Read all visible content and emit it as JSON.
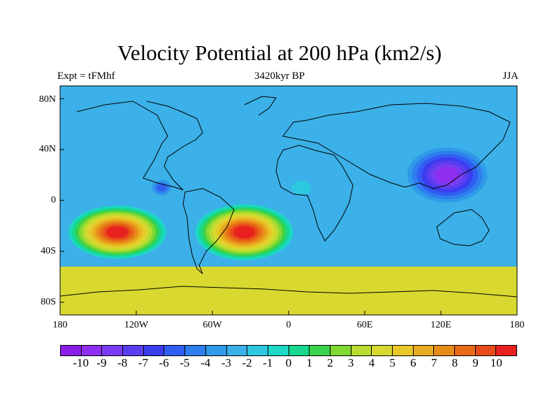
{
  "title": "Velocity Potential at 200 hPa (km2/s)",
  "left_subtitle": "Expt = tFMhf",
  "center_subtitle": "3420kyr BP",
  "right_subtitle": "JJA",
  "y_ticks": [
    "80N",
    "40N",
    "0",
    "40S",
    "80S"
  ],
  "x_ticks": [
    "180",
    "120W",
    "60W",
    "0",
    "60E",
    "120E",
    "180"
  ],
  "colorbar": {
    "labels": [
      "-10",
      "-9",
      "-8",
      "-7",
      "-6",
      "-5",
      "-4",
      "-3",
      "-2",
      "-1",
      "0",
      "1",
      "2",
      "3",
      "4",
      "5",
      "6",
      "7",
      "8",
      "9",
      "10"
    ],
    "colors": [
      "#8a1ee8",
      "#8f2ef0",
      "#7a3cf2",
      "#5a3ef0",
      "#3c3cf0",
      "#2f5ef0",
      "#2f7ef0",
      "#2f9ae8",
      "#3cb0e8",
      "#2cc8e0",
      "#1cd8c4",
      "#18d890",
      "#3ad24a",
      "#80d832",
      "#b8dc30",
      "#d8d830",
      "#e8c828",
      "#e8ac20",
      "#e88c18",
      "#e86a18",
      "#e84a18",
      "#e82020"
    ]
  },
  "chart_data": {
    "type": "heatmap",
    "title": "Velocity Potential at 200 hPa (km2/s)",
    "variable": "velocity potential",
    "level_hPa": 200,
    "units": "km2/s",
    "experiment": "tFMhf",
    "time": "3420kyr BP",
    "season": "JJA",
    "xlim": [
      -180,
      180
    ],
    "ylim": [
      -90,
      90
    ],
    "contour_levels": [
      -10,
      -9,
      -8,
      -7,
      -6,
      -5,
      -4,
      -3,
      -2,
      -1,
      0,
      1,
      2,
      3,
      4,
      5,
      6,
      7,
      8,
      9,
      10
    ],
    "features": [
      {
        "label": "minimum over Asia / western Pacific",
        "lon": 125,
        "lat": 20,
        "value": -10
      },
      {
        "label": "local minimum near Central America",
        "lon": -100,
        "lat": 10,
        "value": -6
      },
      {
        "label": "local minimum over West Africa",
        "lon": 10,
        "lat": 10,
        "value": -2
      },
      {
        "label": "maximum over South Atlantic / South America",
        "lon": -35,
        "lat": -25,
        "value": 10
      },
      {
        "label": "maximum over southeast Pacific",
        "lon": -135,
        "lat": -25,
        "value": 10
      }
    ]
  }
}
